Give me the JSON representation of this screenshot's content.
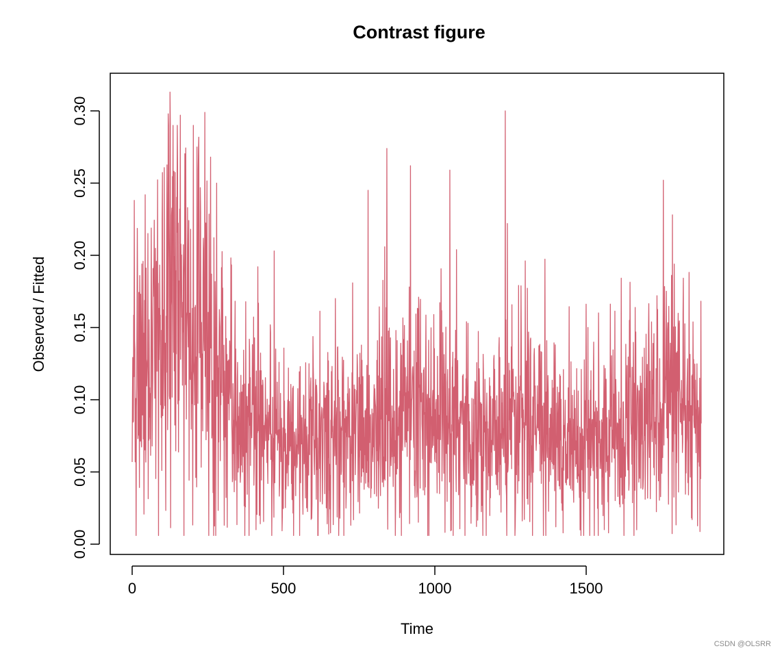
{
  "chart_data": {
    "type": "line",
    "title": "Contrast figure",
    "xlabel": "Time",
    "ylabel": "Observed / Fitted",
    "xlim": [
      0,
      1880
    ],
    "ylim": [
      0,
      0.31
    ],
    "x_ticks": [
      0,
      500,
      1000,
      1500
    ],
    "x_tick_labels": [
      "0",
      "500",
      "1000",
      "1500"
    ],
    "y_ticks": [
      0,
      0.05,
      0.1,
      0.15,
      0.2,
      0.25,
      0.3
    ],
    "y_tick_labels": [
      "0.00",
      "0.05",
      "0.10",
      "0.15",
      "0.20",
      "0.25",
      "0.30"
    ],
    "grid": false,
    "legend": "none",
    "series": [
      {
        "color": "#d25f70",
        "n_points": 1880,
        "x_start": 1,
        "x_end": 1880,
        "summary": "noisy daily series fluctuating mostly between 0.01 and 0.30; elevated level (around 0.15-0.20) near t=100-200 with peaks up to about 0.31, decaying to around 0.07-0.09 after t=400",
        "level_profile": [
          [
            0,
            0.1
          ],
          [
            100,
            0.14
          ],
          [
            130,
            0.17
          ],
          [
            200,
            0.14
          ],
          [
            300,
            0.11
          ],
          [
            400,
            0.08
          ],
          [
            500,
            0.07
          ],
          [
            600,
            0.072
          ],
          [
            700,
            0.072
          ],
          [
            800,
            0.085
          ],
          [
            900,
            0.09
          ],
          [
            1000,
            0.09
          ],
          [
            1100,
            0.085
          ],
          [
            1200,
            0.075
          ],
          [
            1250,
            0.085
          ],
          [
            1300,
            0.09
          ],
          [
            1400,
            0.075
          ],
          [
            1500,
            0.07
          ],
          [
            1600,
            0.075
          ],
          [
            1700,
            0.08
          ],
          [
            1760,
            0.11
          ],
          [
            1800,
            0.085
          ],
          [
            1880,
            0.08
          ]
        ],
        "notable_peaks": [
          [
            8,
            0.238
          ],
          [
            120,
            0.298
          ],
          [
            126,
            0.313
          ],
          [
            160,
            0.297
          ],
          [
            215,
            0.275
          ],
          [
            241,
            0.299
          ],
          [
            260,
            0.268
          ],
          [
            280,
            0.25
          ],
          [
            470,
            0.203
          ],
          [
            780,
            0.245
          ],
          [
            842,
            0.274
          ],
          [
            920,
            0.262
          ],
          [
            1050,
            0.259
          ],
          [
            1233,
            0.3
          ],
          [
            1240,
            0.222
          ],
          [
            1755,
            0.252
          ],
          [
            1785,
            0.228
          ]
        ],
        "notable_troughs": [
          [
            8,
            0.033
          ],
          [
            410,
            0.01
          ],
          [
            650,
            0.007
          ],
          [
            700,
            0.006
          ],
          [
            1240,
            0.005
          ],
          [
            1400,
            0.012
          ],
          [
            1560,
            0.01
          ],
          [
            1850,
            0.017
          ]
        ]
      }
    ]
  },
  "watermark": "CSDN @OLSRR"
}
